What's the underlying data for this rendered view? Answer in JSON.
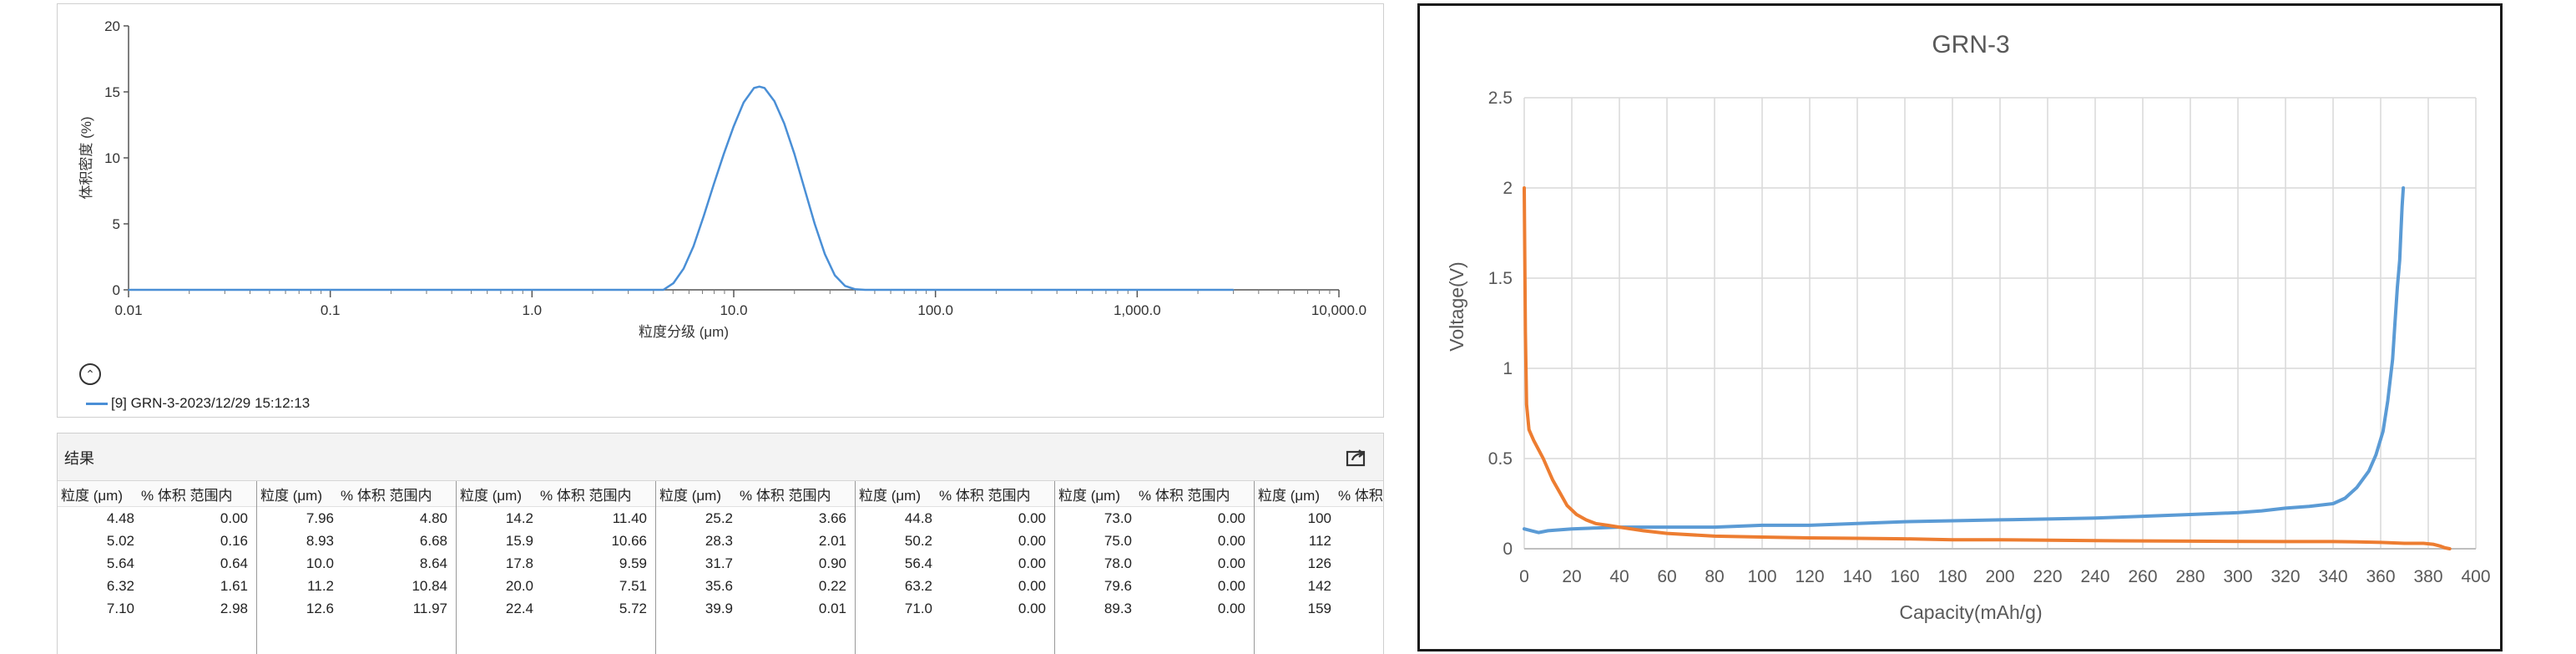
{
  "psd_panel": {
    "legend_label": "[9] GRN-3-2023/12/29 15:12:13",
    "collapse_glyph": "⌃"
  },
  "results": {
    "title": "结果",
    "header_size": "粒度 (μm)",
    "header_vol": "% 体积 范围内",
    "columns": [
      {
        "rows": [
          [
            "4.48",
            "0.00"
          ],
          [
            "5.02",
            "0.16"
          ],
          [
            "5.64",
            "0.64"
          ],
          [
            "6.32",
            "1.61"
          ],
          [
            "7.10",
            "2.98"
          ]
        ]
      },
      {
        "rows": [
          [
            "7.96",
            "4.80"
          ],
          [
            "8.93",
            "6.68"
          ],
          [
            "10.0",
            "8.64"
          ],
          [
            "11.2",
            "10.84"
          ],
          [
            "12.6",
            "11.97"
          ]
        ]
      },
      {
        "rows": [
          [
            "14.2",
            "11.40"
          ],
          [
            "15.9",
            "10.66"
          ],
          [
            "17.8",
            "9.59"
          ],
          [
            "20.0",
            "7.51"
          ],
          [
            "22.4",
            "5.72"
          ]
        ]
      },
      {
        "rows": [
          [
            "25.2",
            "3.66"
          ],
          [
            "28.3",
            "2.01"
          ],
          [
            "31.7",
            "0.90"
          ],
          [
            "35.6",
            "0.22"
          ],
          [
            "39.9",
            "0.01"
          ]
        ]
      },
      {
        "rows": [
          [
            "44.8",
            "0.00"
          ],
          [
            "50.2",
            "0.00"
          ],
          [
            "56.4",
            "0.00"
          ],
          [
            "63.2",
            "0.00"
          ],
          [
            "71.0",
            "0.00"
          ]
        ]
      },
      {
        "rows": [
          [
            "73.0",
            "0.00"
          ],
          [
            "75.0",
            "0.00"
          ],
          [
            "78.0",
            "0.00"
          ],
          [
            "79.6",
            "0.00"
          ],
          [
            "89.3",
            "0.00"
          ]
        ]
      },
      {
        "rows": [
          [
            "100",
            ""
          ],
          [
            "112",
            ""
          ],
          [
            "126",
            ""
          ],
          [
            "142",
            ""
          ],
          [
            "159",
            ""
          ]
        ]
      }
    ]
  },
  "chart_data": [
    {
      "type": "line",
      "title": "",
      "xlabel": "粒度分级 (μm)",
      "ylabel": "体积密度 (%)",
      "x_scale": "log",
      "xlim": [
        0.01,
        10000
      ],
      "ylim": [
        0,
        20
      ],
      "x_ticks": [
        0.01,
        0.1,
        1,
        10,
        100,
        1000,
        10000
      ],
      "x_tick_labels": [
        "0.01",
        "0.1",
        "1.0",
        "10.0",
        "100.0",
        "1,000.0",
        "10,000.0"
      ],
      "y_ticks": [
        0,
        5,
        10,
        15,
        20
      ],
      "y_tick_labels": [
        "0",
        "5",
        "10",
        "15",
        "20"
      ],
      "legend_position": "bottom-left",
      "series": [
        {
          "name": "[9] GRN-3-2023/12/29 15:12:13",
          "color": "#4a8fd6",
          "x": [
            0.01,
            4.0,
            4.48,
            5.02,
            5.64,
            6.32,
            7.1,
            7.96,
            8.93,
            10.0,
            11.2,
            12.6,
            13.4,
            14.2,
            15.9,
            17.8,
            20.0,
            22.4,
            25.2,
            28.3,
            31.7,
            35.6,
            39.9,
            44.8,
            3000
          ],
          "y": [
            0,
            0,
            0.0,
            0.5,
            1.6,
            3.3,
            5.6,
            8.0,
            10.3,
            12.4,
            14.2,
            15.3,
            15.4,
            15.3,
            14.3,
            12.6,
            10.3,
            7.7,
            5.0,
            2.7,
            1.1,
            0.3,
            0.05,
            0,
            0
          ]
        }
      ]
    },
    {
      "type": "line",
      "title": "GRN-3",
      "xlabel": "Capacity(mAh/g)",
      "ylabel": "Voltage(V)",
      "xlim": [
        0,
        400
      ],
      "ylim": [
        0,
        2.5
      ],
      "x_ticks": [
        0,
        20,
        40,
        60,
        80,
        100,
        120,
        140,
        160,
        180,
        200,
        220,
        240,
        260,
        280,
        300,
        320,
        340,
        360,
        380,
        400
      ],
      "y_ticks": [
        0,
        0.5,
        1,
        1.5,
        2,
        2.5
      ],
      "y_tick_labels": [
        "0",
        "0.5",
        "1",
        "1.5",
        "2",
        "2.5"
      ],
      "grid": true,
      "series": [
        {
          "color": "#5b9bd5",
          "x": [
            0,
            3,
            6,
            10,
            20,
            40,
            60,
            80,
            100,
            120,
            140,
            160,
            180,
            200,
            220,
            240,
            260,
            280,
            300,
            310,
            320,
            330,
            340,
            345,
            350,
            355,
            358,
            361,
            363,
            365,
            366,
            367,
            368,
            368.5,
            369,
            369.5
          ],
          "y": [
            0.11,
            0.1,
            0.09,
            0.1,
            0.11,
            0.12,
            0.12,
            0.12,
            0.13,
            0.13,
            0.14,
            0.15,
            0.155,
            0.16,
            0.165,
            0.17,
            0.18,
            0.19,
            0.2,
            0.21,
            0.225,
            0.235,
            0.25,
            0.28,
            0.34,
            0.43,
            0.52,
            0.65,
            0.82,
            1.05,
            1.25,
            1.45,
            1.6,
            1.75,
            1.9,
            2.0
          ]
        },
        {
          "color": "#ed7d31",
          "x": [
            0,
            0.5,
            1,
            2,
            4,
            6,
            8,
            10,
            12,
            15,
            18,
            22,
            26,
            30,
            35,
            40,
            50,
            60,
            80,
            100,
            120,
            140,
            160,
            180,
            200,
            240,
            280,
            320,
            340,
            350,
            360,
            370,
            378,
            382,
            385,
            387,
            389
          ],
          "y": [
            2.0,
            1.2,
            0.8,
            0.66,
            0.6,
            0.55,
            0.5,
            0.44,
            0.38,
            0.31,
            0.24,
            0.19,
            0.16,
            0.14,
            0.13,
            0.12,
            0.1,
            0.085,
            0.07,
            0.065,
            0.06,
            0.058,
            0.055,
            0.05,
            0.05,
            0.045,
            0.042,
            0.04,
            0.04,
            0.038,
            0.035,
            0.03,
            0.03,
            0.025,
            0.015,
            0.005,
            0
          ]
        }
      ]
    }
  ]
}
